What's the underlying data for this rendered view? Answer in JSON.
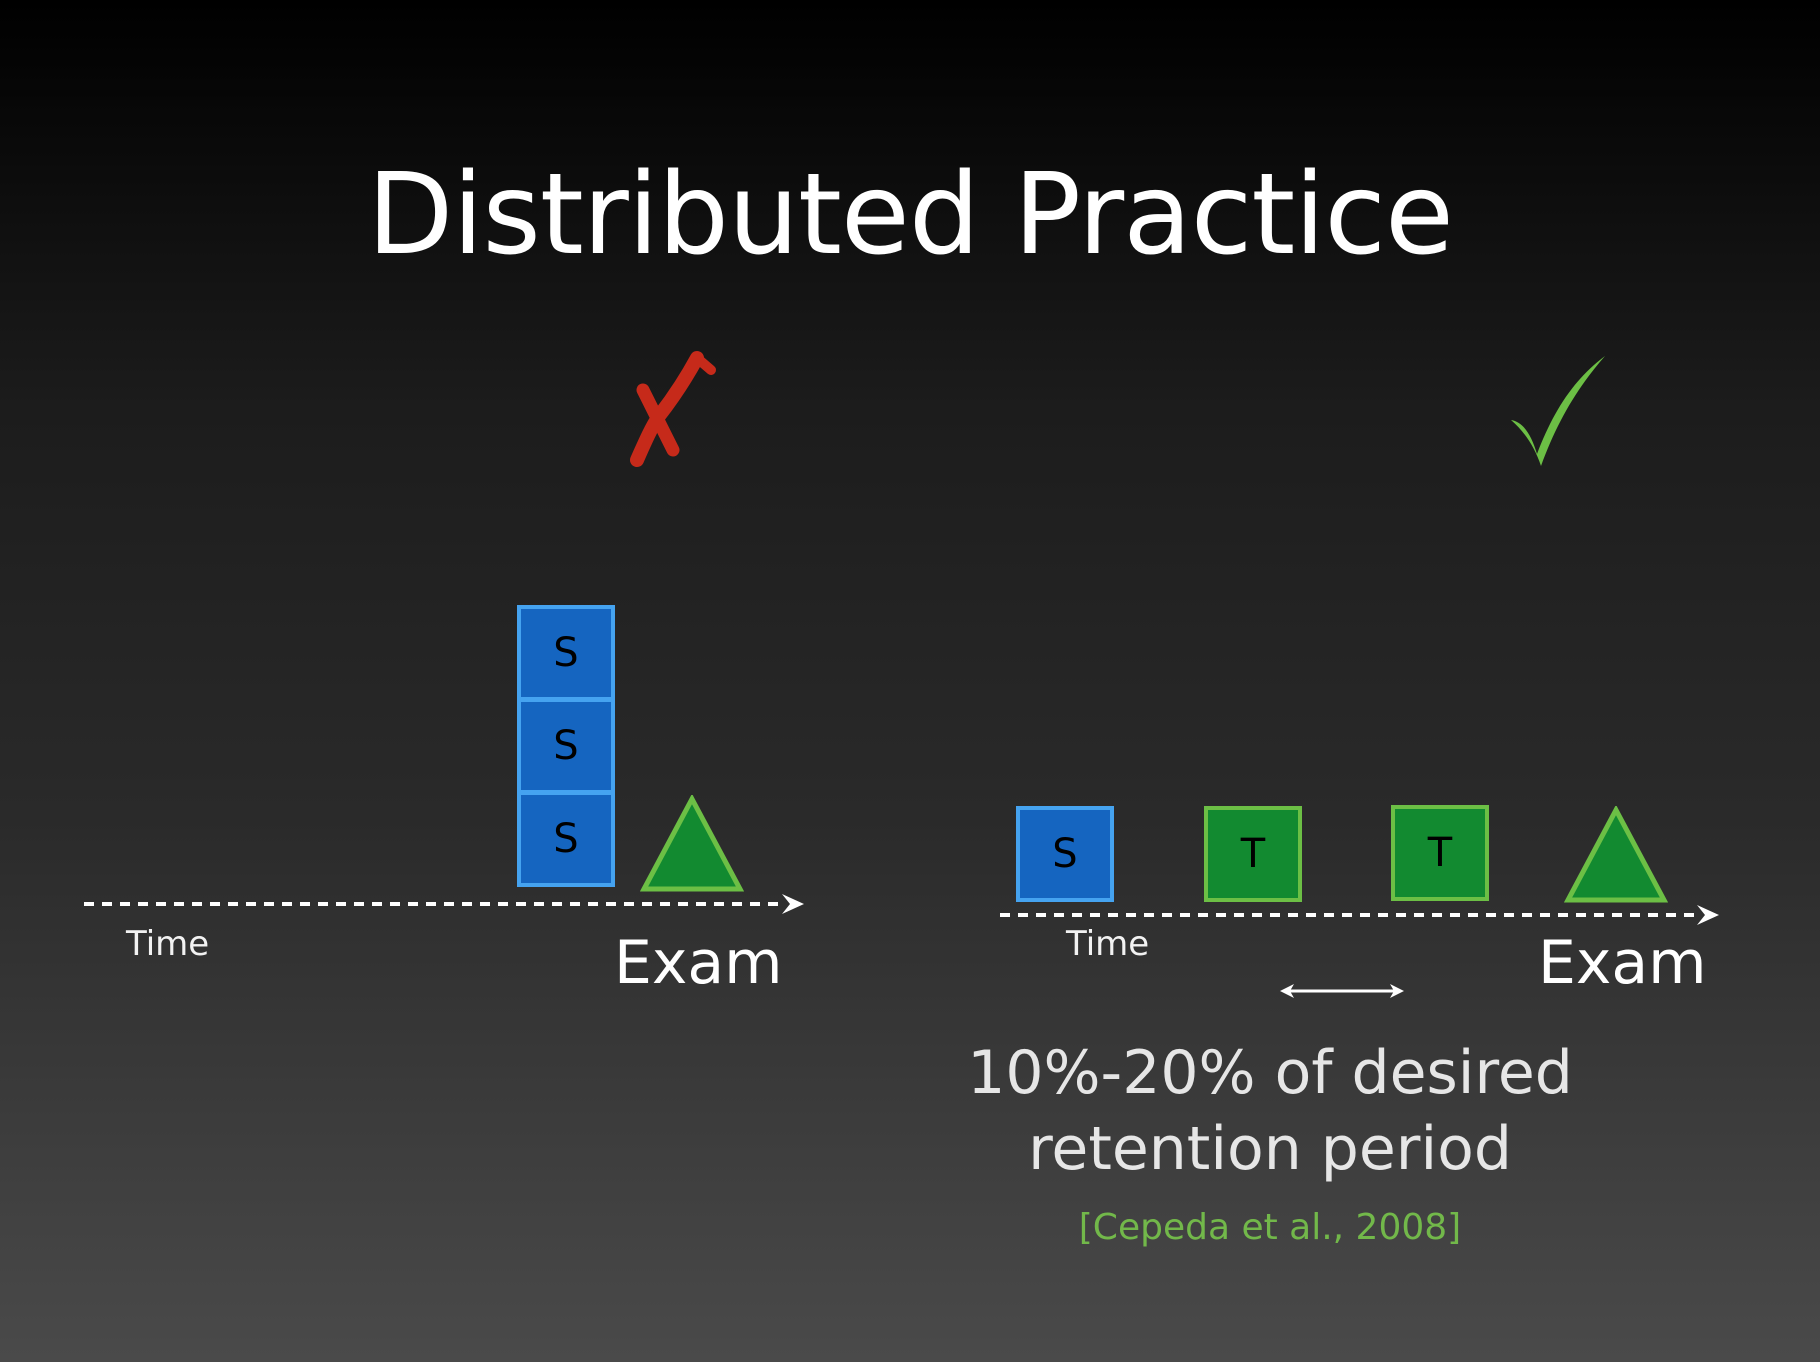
{
  "title": "Distributed Practice",
  "colors": {
    "study_fill": "#1565c0",
    "study_border": "#45a3f0",
    "test_fill": "#128a30",
    "test_border": "#6cbf45",
    "wrong_mark": "#c62a1a",
    "right_mark": "#6cbf45",
    "citation": "#72b84a"
  },
  "massed": {
    "verdict_icon": "cross-mark",
    "blocks": [
      "S",
      "S",
      "S"
    ],
    "time_label": "Time",
    "exam_label": "Exam"
  },
  "spaced": {
    "verdict_icon": "check-mark",
    "blocks": [
      "S",
      "T",
      "T"
    ],
    "time_label": "Time",
    "exam_label": "Exam",
    "interval_text_line1": "10%-20% of desired",
    "interval_text_line2": "retention period",
    "citation": "[Cepeda et al., 2008]"
  }
}
